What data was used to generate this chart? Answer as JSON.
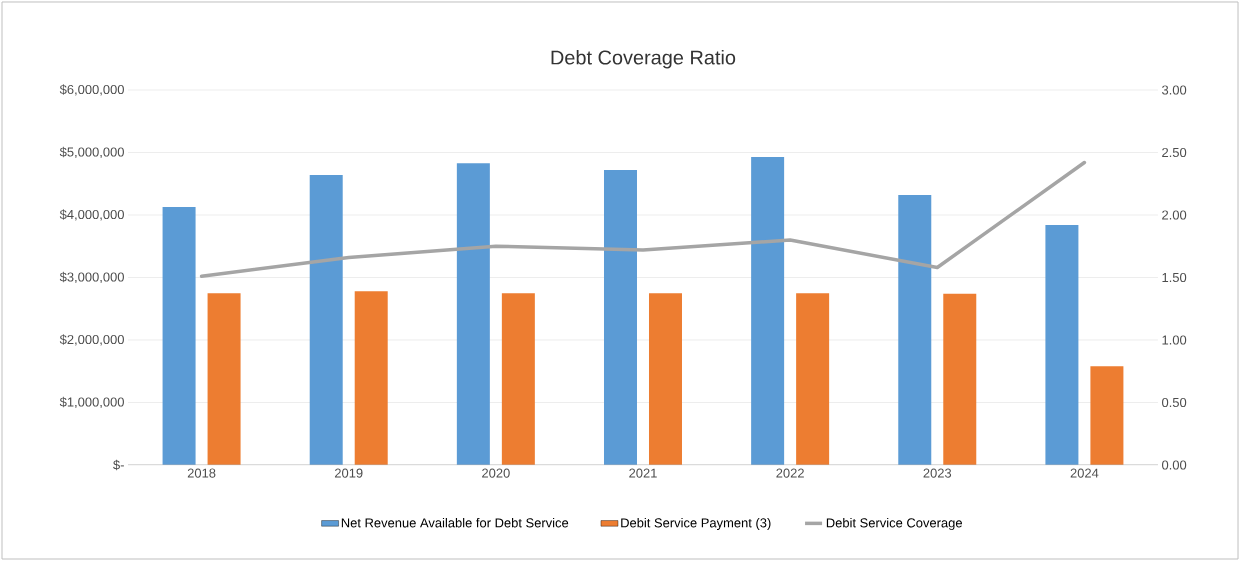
{
  "chart_data": {
    "type": "bar",
    "title": "Debt Coverage Ratio",
    "categories": [
      "2018",
      "2019",
      "2020",
      "2021",
      "2022",
      "2023",
      "2024"
    ],
    "series": [
      {
        "name": "Net Revenue Available for Debt Service",
        "color": "#5b9bd5",
        "values": [
          4130000,
          4640000,
          4830000,
          4720000,
          4930000,
          4320000,
          3840000
        ]
      },
      {
        "name": "Debit Service Payment (3)",
        "color": "#ed7d31",
        "values": [
          2750000,
          2780000,
          2750000,
          2750000,
          2750000,
          2740000,
          1580000
        ]
      },
      {
        "name": "Debit Service Coverage",
        "color": "#a5a5a5",
        "type": "line",
        "axis": "y2",
        "values": [
          1.51,
          1.66,
          1.75,
          1.72,
          1.8,
          1.58,
          2.42
        ]
      }
    ],
    "ylim": [
      0,
      6000000
    ],
    "yticks": [
      {
        "value": 0,
        "label": "$-"
      },
      {
        "value": 1000000,
        "label": "$1,000,000"
      },
      {
        "value": 2000000,
        "label": "$2,000,000"
      },
      {
        "value": 3000000,
        "label": "$3,000,000"
      },
      {
        "value": 4000000,
        "label": "$4,000,000"
      },
      {
        "value": 5000000,
        "label": "$5,000,000"
      },
      {
        "value": 6000000,
        "label": "$6,000,000"
      }
    ],
    "y2lim": [
      0,
      3
    ],
    "y2ticks": [
      {
        "value": 0,
        "label": "0.00"
      },
      {
        "value": 0.5,
        "label": "0.50"
      },
      {
        "value": 1,
        "label": "1.00"
      },
      {
        "value": 1.5,
        "label": "1.50"
      },
      {
        "value": 2,
        "label": "2.00"
      },
      {
        "value": 2.5,
        "label": "2.50"
      },
      {
        "value": 3,
        "label": "3.00"
      }
    ],
    "grid": "y",
    "legend": "bottom"
  }
}
